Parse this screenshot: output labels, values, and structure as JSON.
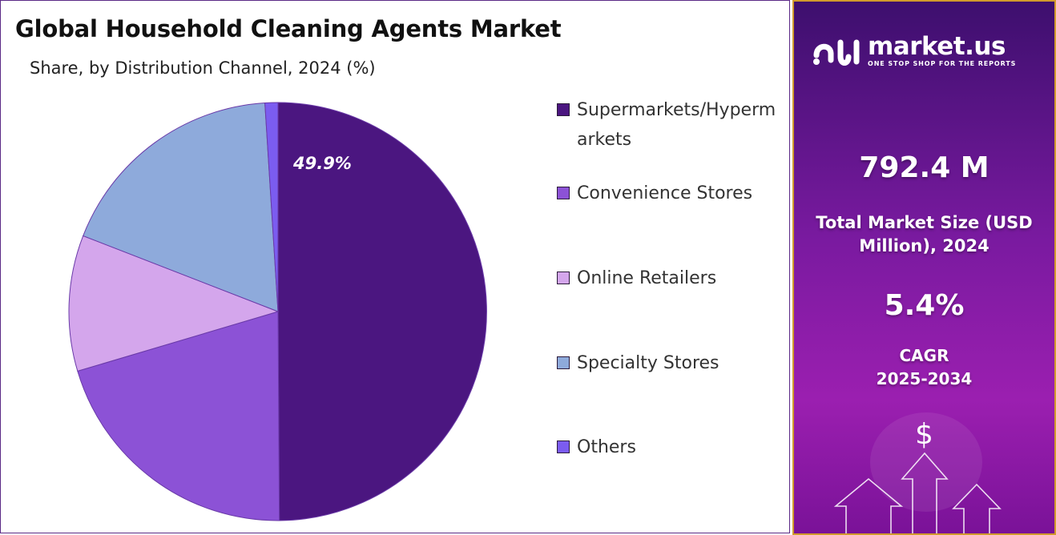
{
  "title": "Global  Household Cleaning Agents Market",
  "subtitle": "Share, by Distribution Channel, 2024 (%)",
  "chart_data": {
    "type": "pie",
    "title": "Global  Household Cleaning Agents Market",
    "subtitle": "Share, by Distribution Channel, 2024 (%)",
    "categories": [
      "Supermarkets/Hypermarkets",
      "Convenience Stores",
      "Online Retailers",
      "Specialty Stores",
      "Others"
    ],
    "values": [
      49.9,
      20.5,
      10.5,
      18.1,
      1.0
    ],
    "colors": [
      "#4b1680",
      "#8c52d6",
      "#d4a6ec",
      "#8eaadb",
      "#7b5cf0"
    ],
    "data_labels": [
      "49.9%"
    ],
    "legend_position": "right"
  },
  "legend": {
    "items": [
      {
        "label": "Supermarkets/Hypermarkets",
        "color": "#4b1680"
      },
      {
        "label": "Convenience Stores",
        "color": "#8c52d6"
      },
      {
        "label": "Online Retailers",
        "color": "#d4a6ec"
      },
      {
        "label": "Specialty Stores",
        "color": "#8eaadb"
      },
      {
        "label": "Others",
        "color": "#7b5cf0"
      }
    ]
  },
  "info_panel": {
    "brand_name": "market.us",
    "brand_tagline": "ONE STOP SHOP FOR THE REPORTS",
    "market_size_value": "792.4  M",
    "market_size_label": "Total Market Size (USD Million), 2024",
    "cagr_value": "5.4%",
    "cagr_label": "CAGR",
    "cagr_years": "2025-2034",
    "currency_symbol": "$"
  }
}
